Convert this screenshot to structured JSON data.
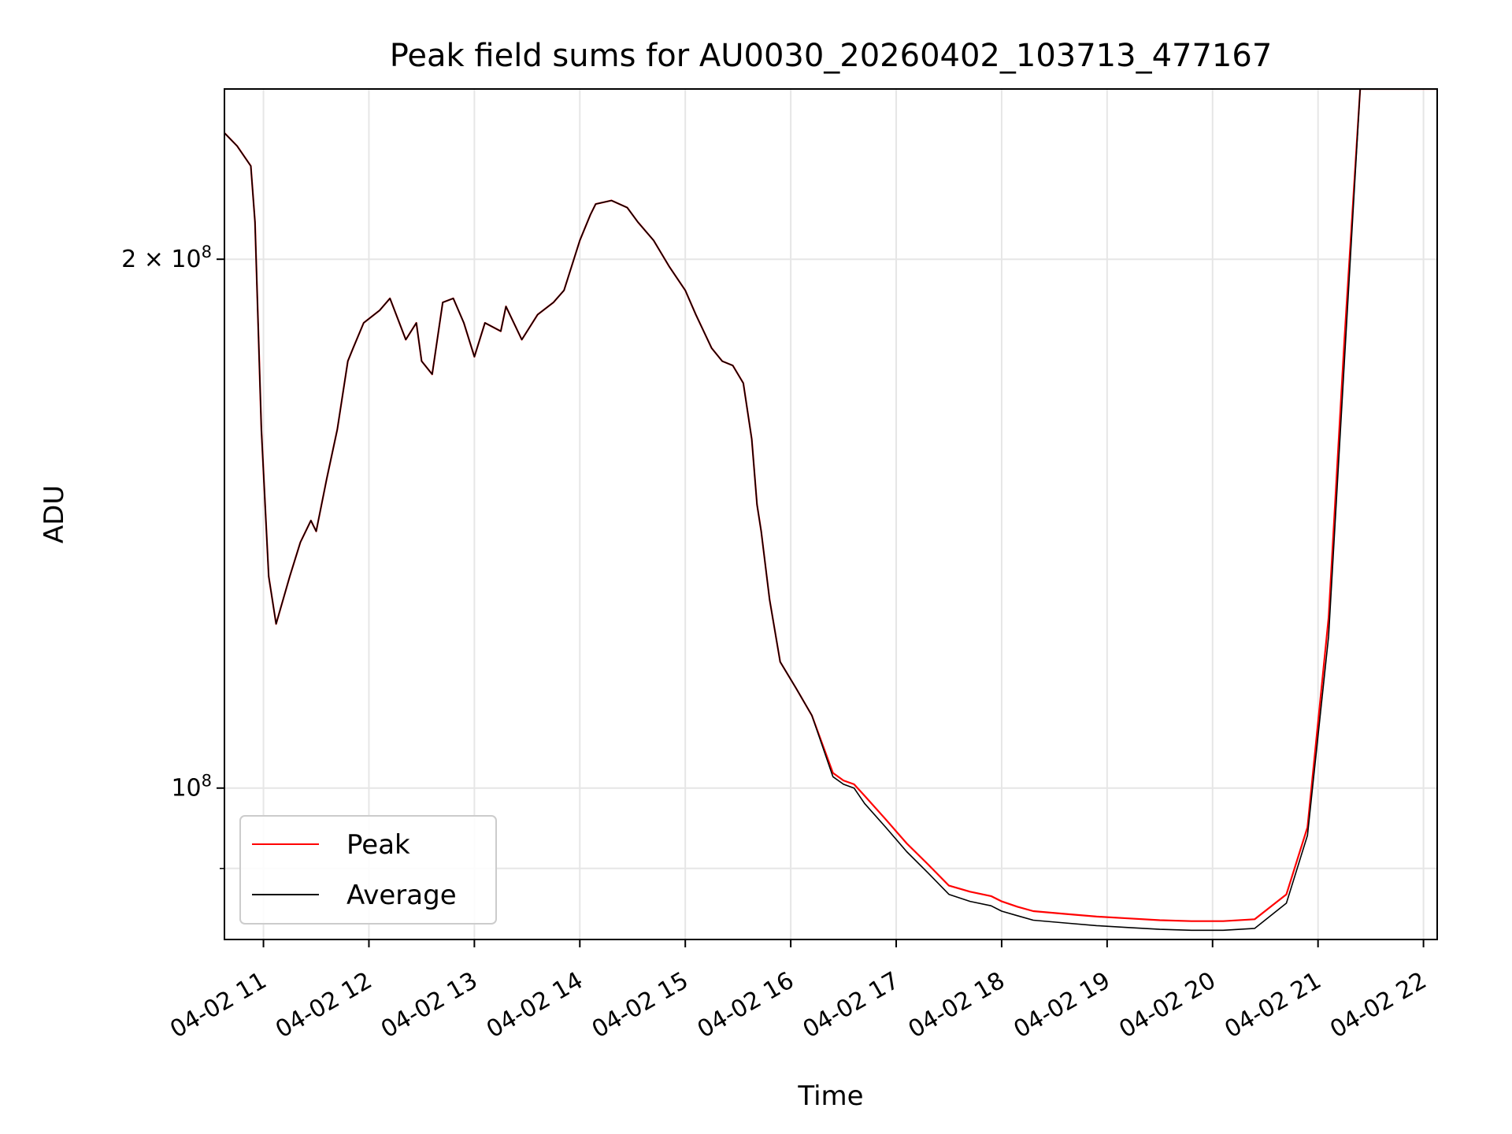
{
  "chart_data": {
    "type": "line",
    "title": "Peak field sums for AU0030_20260402_103713_477167",
    "xlabel": "Time",
    "ylabel": "ADU",
    "yscale": "log",
    "ylim": [
      82000000,
      250000000
    ],
    "xlim": [
      10.63,
      22.13
    ],
    "x_units": "hour of day (2026-04-02)",
    "x_ticks": [
      {
        "value": 11,
        "label": "04-02 11"
      },
      {
        "value": 12,
        "label": "04-02 12"
      },
      {
        "value": 13,
        "label": "04-02 13"
      },
      {
        "value": 14,
        "label": "04-02 14"
      },
      {
        "value": 15,
        "label": "04-02 15"
      },
      {
        "value": 16,
        "label": "04-02 16"
      },
      {
        "value": 17,
        "label": "04-02 17"
      },
      {
        "value": 18,
        "label": "04-02 18"
      },
      {
        "value": 19,
        "label": "04-02 19"
      },
      {
        "value": 20,
        "label": "04-02 20"
      },
      {
        "value": 21,
        "label": "04-02 21"
      },
      {
        "value": 22,
        "label": "04-02 22"
      }
    ],
    "y_major_ticks": [
      {
        "value": 100000000,
        "label_base": "10",
        "label_exp": "8"
      },
      {
        "value": 200000000,
        "label_base": "2 × 10",
        "label_exp": "8"
      }
    ],
    "y_minor_ticks": [
      90000000
    ],
    "grid": true,
    "legend": {
      "position": "lower-left",
      "entries": [
        "Peak",
        "Average"
      ]
    },
    "series": [
      {
        "name": "Peak",
        "color": "#ff0000",
        "x": [
          10.63,
          10.75,
          10.88,
          10.92,
          10.98,
          11.05,
          11.12,
          11.25,
          11.35,
          11.45,
          11.5,
          11.6,
          11.7,
          11.8,
          11.85,
          11.95,
          12.1,
          12.2,
          12.35,
          12.45,
          12.5,
          12.6,
          12.7,
          12.8,
          12.9,
          13.0,
          13.1,
          13.25,
          13.3,
          13.45,
          13.6,
          13.75,
          13.85,
          14.0,
          14.1,
          14.15,
          14.3,
          14.45,
          14.55,
          14.7,
          14.85,
          15.0,
          15.1,
          15.25,
          15.35,
          15.45,
          15.55,
          15.63,
          15.68,
          15.72,
          15.8,
          15.9,
          16.05,
          16.2,
          16.4,
          16.5,
          16.6,
          16.7,
          16.9,
          17.1,
          17.3,
          17.5,
          17.7,
          17.9,
          18.0,
          18.15,
          18.3,
          18.6,
          18.9,
          19.2,
          19.5,
          19.8,
          20.1,
          20.4,
          20.7,
          20.9,
          21.1,
          21.25,
          21.4,
          21.55,
          21.65,
          21.75,
          21.85,
          21.95,
          22.13
        ],
        "y": [
          236000000,
          232000000,
          226000000,
          210000000,
          160000000,
          132000000,
          124000000,
          132000000,
          138000000,
          142000000,
          140000000,
          150000000,
          160000000,
          175000000,
          178000000,
          184000000,
          187000000,
          190000000,
          180000000,
          184000000,
          175000000,
          172000000,
          189000000,
          190000000,
          184000000,
          176000000,
          184000000,
          182000000,
          188000000,
          180000000,
          186000000,
          189000000,
          192000000,
          205000000,
          212000000,
          215000000,
          216000000,
          214000000,
          210000000,
          205000000,
          198000000,
          192000000,
          186000000,
          178000000,
          175000000,
          174000000,
          170000000,
          158000000,
          145000000,
          140000000,
          128000000,
          118000000,
          114000000,
          110000000,
          102000000,
          101000000,
          100500000,
          99000000,
          96000000,
          93000000,
          90500000,
          88000000,
          87300000,
          86800000,
          86200000,
          85600000,
          85100000,
          84800000,
          84500000,
          84300000,
          84100000,
          84000000,
          84000000,
          84200000,
          87000000,
          95000000,
          125000000,
          180000000,
          250000000,
          250000000,
          250000000,
          250000000,
          250000000,
          250000000,
          250000000
        ]
      },
      {
        "name": "Average",
        "color": "#000000",
        "x": [
          10.63,
          10.75,
          10.88,
          10.92,
          10.98,
          11.05,
          11.12,
          11.25,
          11.35,
          11.45,
          11.5,
          11.6,
          11.7,
          11.8,
          11.85,
          11.95,
          12.1,
          12.2,
          12.35,
          12.45,
          12.5,
          12.6,
          12.7,
          12.8,
          12.9,
          13.0,
          13.1,
          13.25,
          13.3,
          13.45,
          13.6,
          13.75,
          13.85,
          14.0,
          14.1,
          14.15,
          14.3,
          14.45,
          14.55,
          14.7,
          14.85,
          15.0,
          15.1,
          15.25,
          15.35,
          15.45,
          15.55,
          15.63,
          15.68,
          15.72,
          15.8,
          15.9,
          16.05,
          16.2,
          16.4,
          16.5,
          16.6,
          16.7,
          16.9,
          17.1,
          17.3,
          17.5,
          17.7,
          17.9,
          18.0,
          18.15,
          18.3,
          18.6,
          18.9,
          19.2,
          19.5,
          19.8,
          20.1,
          20.4,
          20.7,
          20.9,
          21.1,
          21.25,
          21.4,
          21.55,
          21.65,
          21.75,
          21.85,
          21.95,
          22.13
        ],
        "y": [
          236000000,
          232000000,
          226000000,
          210000000,
          160000000,
          132000000,
          124000000,
          132000000,
          138000000,
          142000000,
          140000000,
          150000000,
          160000000,
          175000000,
          178000000,
          184000000,
          187000000,
          190000000,
          180000000,
          184000000,
          175000000,
          172000000,
          189000000,
          190000000,
          184000000,
          176000000,
          184000000,
          182000000,
          188000000,
          180000000,
          186000000,
          189000000,
          192000000,
          205000000,
          212000000,
          215000000,
          216000000,
          214000000,
          210000000,
          205000000,
          198000000,
          192000000,
          186000000,
          178000000,
          175000000,
          174000000,
          170000000,
          158000000,
          145000000,
          140000000,
          128000000,
          118000000,
          114000000,
          110000000,
          101500000,
          100500000,
          100000000,
          98000000,
          95000000,
          92000000,
          89500000,
          87000000,
          86200000,
          85700000,
          85100000,
          84600000,
          84100000,
          83800000,
          83500000,
          83300000,
          83100000,
          83000000,
          83000000,
          83200000,
          86000000,
          94000000,
          122000000,
          175000000,
          250000000,
          250000000,
          250000000,
          250000000,
          250000000,
          250000000,
          250000000
        ]
      }
    ]
  }
}
